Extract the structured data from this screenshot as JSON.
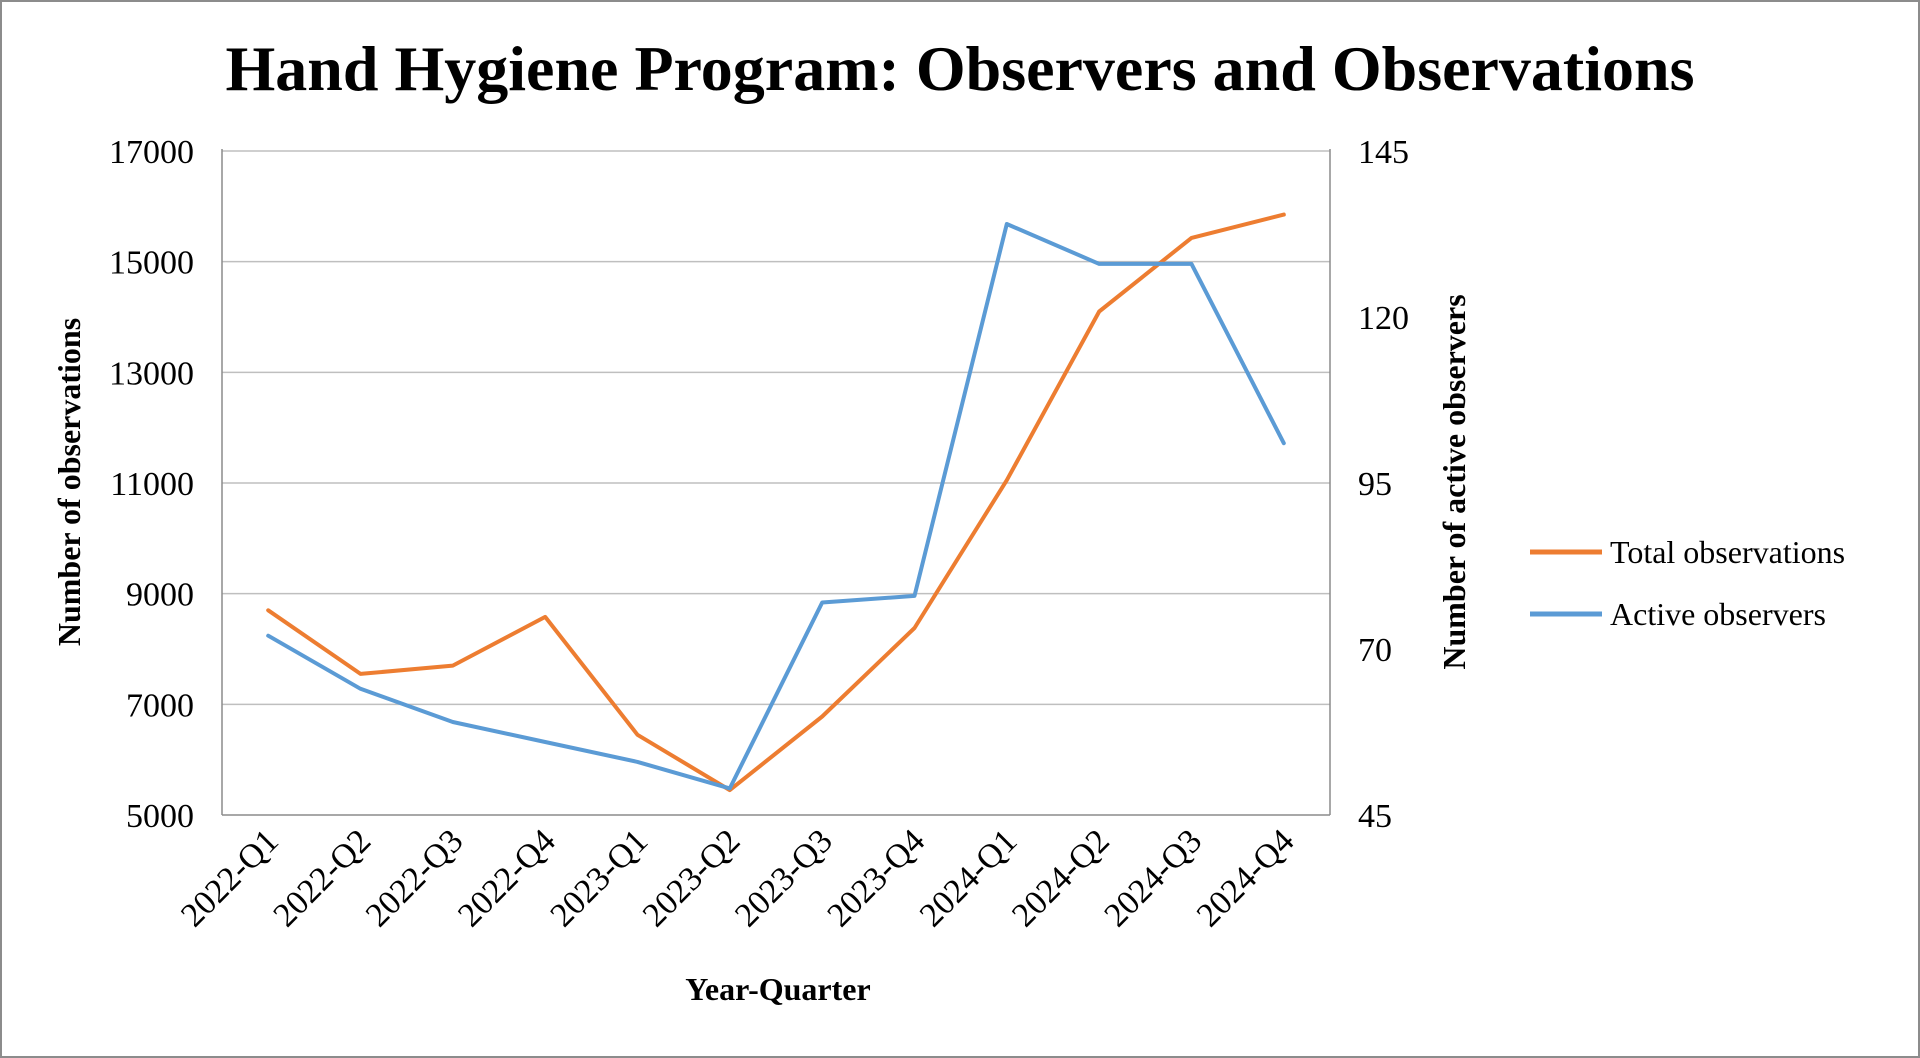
{
  "chart_data": {
    "type": "line",
    "title": "Hand Hygiene Program: Observers and Observations",
    "xlabel": "Year-Quarter",
    "ylabel": "Number of observations",
    "y2label": "Number of active observers",
    "categories": [
      "2022-Q1",
      "2022-Q2",
      "2022-Q3",
      "2022-Q4",
      "2023-Q1",
      "2023-Q2",
      "2023-Q3",
      "2023-Q4",
      "2024-Q1",
      "2024-Q2",
      "2024-Q3",
      "2024-Q4"
    ],
    "ylim": [
      5000,
      17000
    ],
    "yticks": [
      5000,
      7000,
      9000,
      11000,
      13000,
      15000,
      17000
    ],
    "y2lim": [
      45,
      145
    ],
    "y2ticks": [
      45,
      70,
      95,
      120,
      145
    ],
    "grid": true,
    "legend_position": "right",
    "series": [
      {
        "name": "Total observations",
        "axis": "left",
        "color": "#ED7D31",
        "values": [
          8700,
          7550,
          7700,
          8580,
          6450,
          5450,
          6780,
          8380,
          11050,
          14100,
          15430,
          15850
        ]
      },
      {
        "name": "Active observers",
        "axis": "right",
        "color": "#5B9BD5",
        "values": [
          72,
          64,
          59,
          56,
          53,
          49,
          77,
          78,
          134,
          128,
          128,
          101
        ]
      }
    ]
  }
}
